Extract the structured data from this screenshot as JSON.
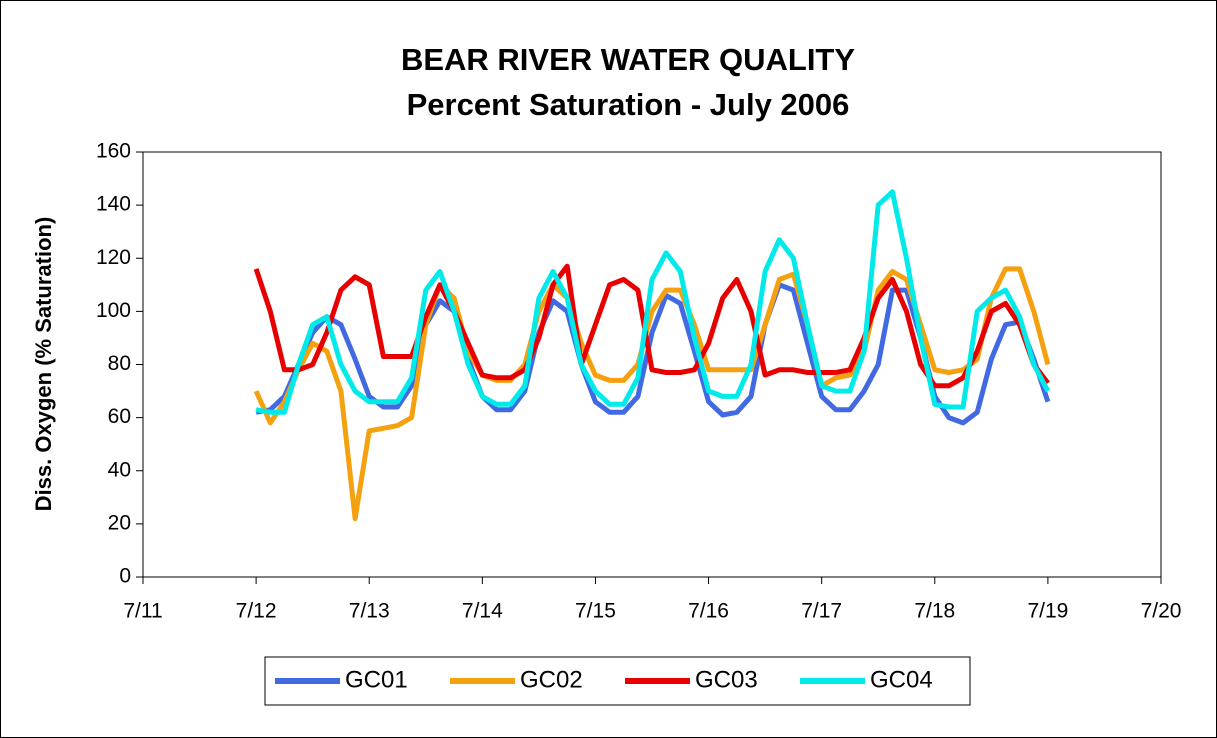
{
  "chart_data": {
    "type": "line",
    "title": "BEAR RIVER WATER QUALITY",
    "subtitle": "Percent Saturation - July 2006",
    "y_label": "Diss. Oxygen (% Saturation)",
    "x": [
      12,
      12.125,
      12.25,
      12.375,
      12.5,
      12.625,
      12.75,
      12.875,
      13,
      13.125,
      13.25,
      13.375,
      13.5,
      13.625,
      13.75,
      13.875,
      14,
      14.125,
      14.25,
      14.375,
      14.5,
      14.625,
      14.75,
      14.875,
      15,
      15.125,
      15.25,
      15.375,
      15.5,
      15.625,
      15.75,
      15.875,
      16,
      16.125,
      16.25,
      16.375,
      16.5,
      16.625,
      16.75,
      16.875,
      17,
      17.125,
      17.25,
      17.375,
      17.5,
      17.625,
      17.75,
      17.875,
      18,
      18.125,
      18.25,
      18.375,
      18.5,
      18.625,
      18.75,
      18.875,
      19
    ],
    "series": [
      {
        "name": "GC01",
        "color": "#4169e1",
        "values": [
          62,
          63,
          68,
          80,
          92,
          98,
          95,
          82,
          68,
          64,
          64,
          72,
          95,
          104,
          100,
          82,
          68,
          63,
          63,
          70,
          92,
          104,
          100,
          80,
          66,
          62,
          62,
          68,
          92,
          106,
          103,
          85,
          66,
          61,
          62,
          68,
          95,
          110,
          108,
          88,
          68,
          63,
          63,
          70,
          80,
          108,
          108,
          90,
          68,
          60,
          58,
          62,
          82,
          95,
          96,
          82,
          66
        ]
      },
      {
        "name": "GC02",
        "color": "#f5a00f",
        "values": [
          70,
          58,
          66,
          78,
          88,
          85,
          70,
          22,
          55,
          56,
          57,
          60,
          95,
          110,
          105,
          85,
          76,
          74,
          74,
          80,
          100,
          110,
          105,
          88,
          76,
          74,
          74,
          80,
          100,
          108,
          108,
          95,
          78,
          78,
          78,
          78,
          95,
          112,
          114,
          95,
          72,
          75,
          76,
          85,
          108,
          115,
          112,
          95,
          78,
          77,
          78,
          82,
          105,
          116,
          116,
          100,
          80
        ]
      },
      {
        "name": "GC03",
        "color": "#e80000",
        "values": [
          116,
          100,
          78,
          78,
          80,
          92,
          108,
          113,
          110,
          83,
          83,
          83,
          98,
          110,
          100,
          88,
          76,
          75,
          75,
          78,
          90,
          110,
          117,
          80,
          95,
          110,
          112,
          108,
          78,
          77,
          77,
          78,
          88,
          105,
          112,
          100,
          76,
          78,
          78,
          77,
          77,
          77,
          78,
          90,
          105,
          112,
          100,
          80,
          72,
          72,
          75,
          85,
          100,
          103,
          95,
          80,
          73
        ]
      },
      {
        "name": "GC04",
        "color": "#00eaea",
        "values": [
          63,
          62,
          62,
          80,
          95,
          98,
          80,
          70,
          66,
          66,
          66,
          75,
          108,
          115,
          100,
          80,
          68,
          65,
          65,
          72,
          105,
          115,
          105,
          80,
          70,
          65,
          65,
          75,
          112,
          122,
          115,
          90,
          70,
          68,
          68,
          80,
          115,
          127,
          120,
          95,
          72,
          70,
          70,
          85,
          140,
          145,
          120,
          90,
          65,
          64,
          64,
          100,
          105,
          108,
          98,
          80,
          70
        ]
      }
    ],
    "xlim": [
      11,
      20
    ],
    "xticks": [
      {
        "value": 11,
        "label": "7/11"
      },
      {
        "value": 12,
        "label": "7/12"
      },
      {
        "value": 13,
        "label": "7/13"
      },
      {
        "value": 14,
        "label": "7/14"
      },
      {
        "value": 15,
        "label": "7/15"
      },
      {
        "value": 16,
        "label": "7/16"
      },
      {
        "value": 17,
        "label": "7/17"
      },
      {
        "value": 18,
        "label": "7/18"
      },
      {
        "value": 19,
        "label": "7/19"
      },
      {
        "value": 20,
        "label": "7/20"
      }
    ],
    "ylim": [
      0,
      160
    ],
    "yticks": [
      0,
      20,
      40,
      60,
      80,
      100,
      120,
      140,
      160
    ],
    "grid": false,
    "legend": "bottom"
  }
}
